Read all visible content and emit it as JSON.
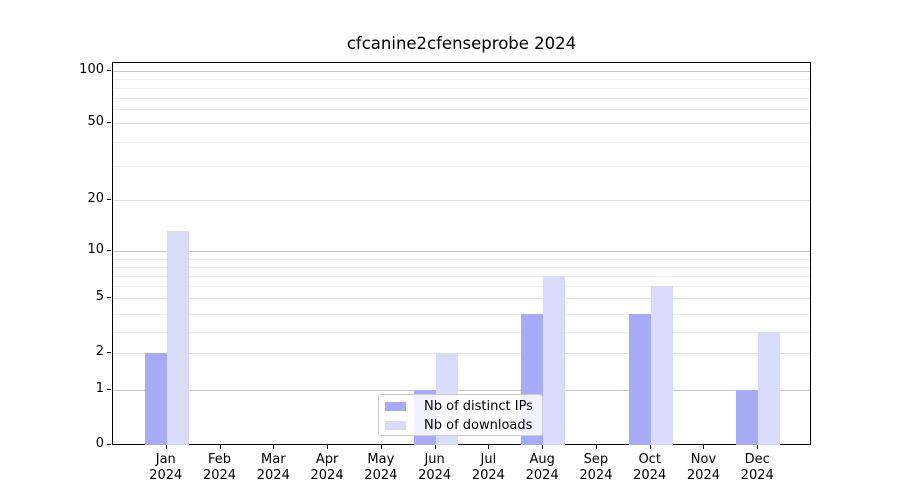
{
  "chart_data": {
    "type": "bar",
    "title": "cfcanine2cfenseprobe 2024",
    "categories": [
      "Jan",
      "Feb",
      "Mar",
      "Apr",
      "May",
      "Jun",
      "Jul",
      "Aug",
      "Sep",
      "Oct",
      "Nov",
      "Dec"
    ],
    "year_label": "2024",
    "series": [
      {
        "name": "Nb of distinct IPs",
        "color": "#a7aaf5",
        "values": [
          2,
          0,
          0,
          0,
          0,
          1,
          0,
          4,
          0,
          4,
          0,
          1
        ]
      },
      {
        "name": "Nb of downloads",
        "color": "#d9dbfa",
        "values": [
          13,
          0,
          0,
          0,
          0,
          2,
          0,
          7,
          0,
          6,
          0,
          3
        ]
      }
    ],
    "yticks": [
      0,
      1,
      2,
      5,
      10,
      20,
      50,
      100
    ],
    "xlabel": "",
    "ylabel": "",
    "ylim": [
      0,
      115
    ],
    "yscale": "symlog",
    "grid": true,
    "legend_position": "bottom-center"
  }
}
